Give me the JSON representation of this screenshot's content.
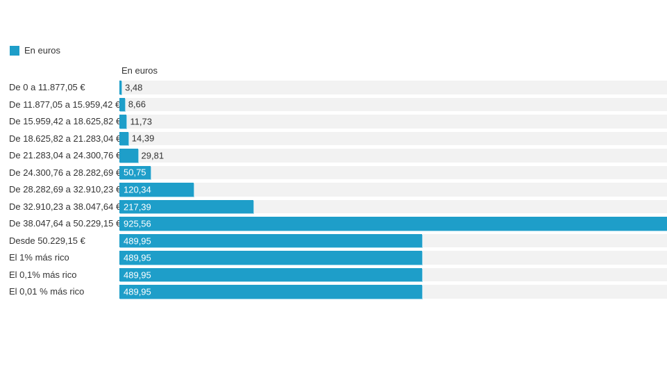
{
  "colors": {
    "bar": "#1e9ec9",
    "bar_edge_highlight": "#8ed1e7",
    "track": "#f2f2f2",
    "text": "#333333",
    "value_inside_text": "#ffffff",
    "background": "#ffffff"
  },
  "legend": {
    "label": "En euros"
  },
  "chart_data": {
    "type": "bar",
    "orientation": "horizontal",
    "title": "",
    "column_header": "En euros",
    "legend_entries": [
      "En euros"
    ],
    "legend_position": "top-left",
    "grid": false,
    "axis_ticks_visible": false,
    "categories": [
      "De 0 a 11.877,05 €",
      "De 11.877,05 a 15.959,42 €",
      "De 15.959,42 a 18.625,82 €",
      "De 18.625,82 a 21.283,04 €",
      "De 21.283,04 a 24.300,76 €",
      "De 24.300,76 a 28.282,69 €",
      "De 28.282,69 a 32.910,23 €",
      "De 32.910,23 a 38.047,64 €",
      "De 38.047,64 a 50.229,15 €",
      "Desde 50.229,15 €",
      "El 1% más rico",
      "El 0,1% más rico",
      "El 0,01 % más rico"
    ],
    "values": [
      3.48,
      8.66,
      11.73,
      14.39,
      29.81,
      50.75,
      120.34,
      217.39,
      925.56,
      489.95,
      489.95,
      489.95,
      489.95
    ],
    "value_labels": [
      "3,48",
      "8,66",
      "11,73",
      "14,39",
      "29,81",
      "50,75",
      "120,34",
      "217,39",
      "925,56",
      "489,95",
      "489,95",
      "489,95",
      "489,95"
    ],
    "xlim_visible": [
      0,
      886.6
    ],
    "max_bar_clipped_at_right_edge": true,
    "value_label_placement": "inside bar when bar is wide, right of bar when narrow"
  }
}
